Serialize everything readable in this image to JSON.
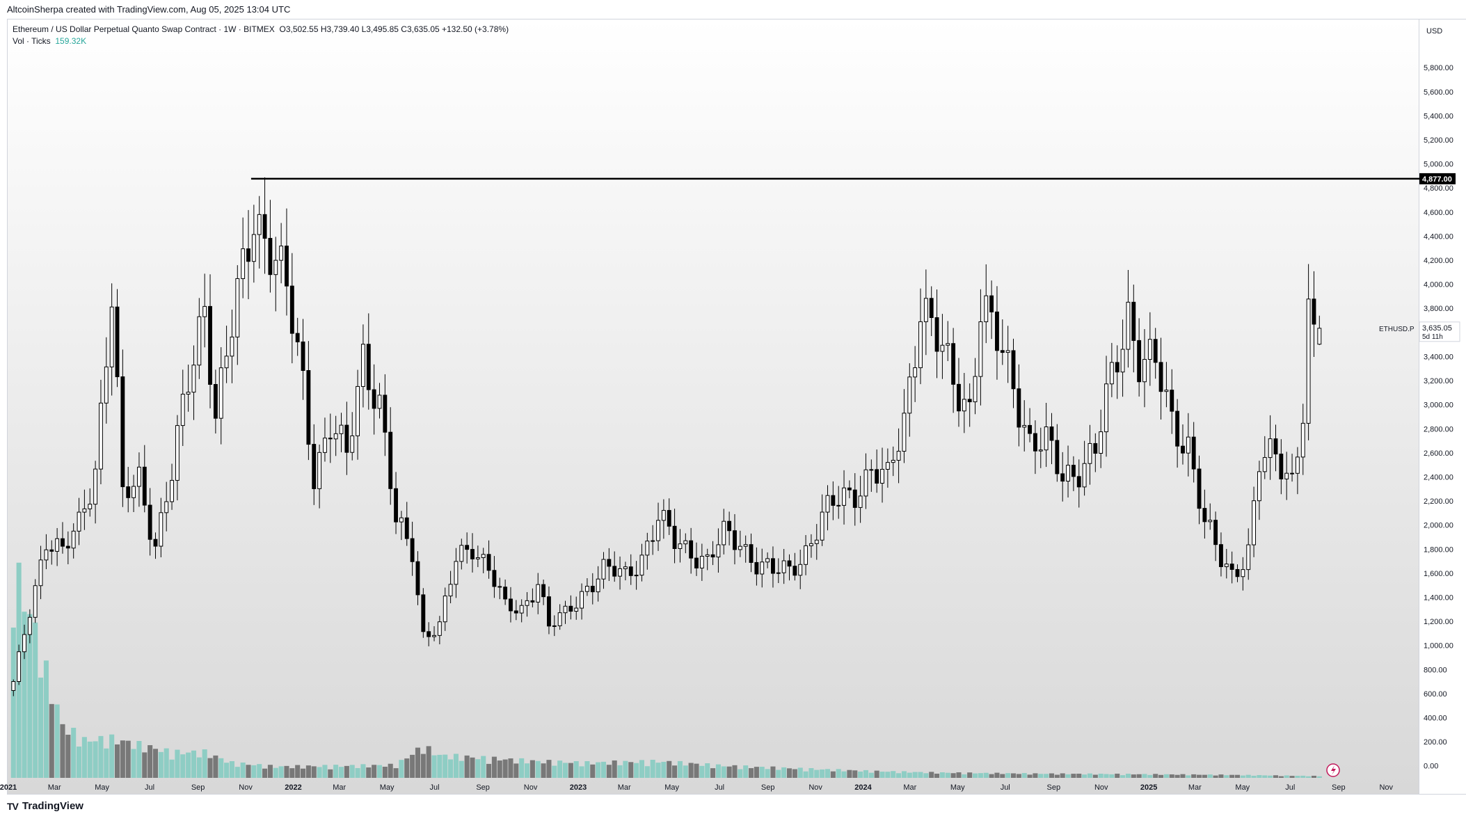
{
  "header": {
    "created_by": "AltcoinSherpa created with TradingView.com, Aug 05, 2025 13:04 UTC"
  },
  "legend": {
    "symbol_line": "Ethereum / US Dollar Perpetual Quanto Swap Contract · 1W · BITMEX",
    "ohlc": "O3,502.55  H3,739.40  L3,495.85  C3,635.05  +132.50 (+3.78%)",
    "volume_label": "Vol · Ticks",
    "volume_value": "159.32K"
  },
  "footer": {
    "brand": "TradingView",
    "brand_mark": "TV"
  },
  "colors": {
    "up_body": "#ffffff",
    "down_body": "#000000",
    "wick": "#000000",
    "vol_up": "#8ecdc4",
    "vol_down": "#787878",
    "hline": "#000000",
    "grid_bg_top": "#ffffff",
    "grid_bg_bottom": "#d8d8d8"
  },
  "chart_data": {
    "type": "candlestick",
    "title": "",
    "currency": "USD",
    "timeframe": "1W",
    "ylim": [
      -100,
      6200
    ],
    "yticks": [
      0,
      200,
      400,
      600,
      800,
      1000,
      1200,
      1400,
      1600,
      1800,
      2000,
      2200,
      2400,
      2600,
      2800,
      3000,
      3200,
      3400,
      3600,
      3800,
      4000,
      4200,
      4400,
      4600,
      4800,
      5000,
      5200,
      5400,
      5600,
      5800
    ],
    "ytick_labels": [
      "0.00",
      "200.00",
      "400.00",
      "600.00",
      "800.00",
      "1,000.00",
      "1,200.00",
      "1,400.00",
      "1,600.00",
      "1,800.00",
      "2,000.00",
      "2,200.00",
      "2,400.00",
      "2,600.00",
      "2,800.00",
      "3,000.00",
      "3,200.00",
      "3,400.00",
      "3,600.00",
      "3,800.00",
      "4,000.00",
      "4,200.00",
      "4,400.00",
      "4,600.00",
      "4,800.00",
      "5,000.00",
      "5,200.00",
      "5,400.00",
      "5,600.00",
      "5,800.00"
    ],
    "x_start": "2021-01-01",
    "x_end": "2025-12-10",
    "x_ticks": [
      {
        "date": "2021-01-01",
        "label": "2021",
        "bold": true
      },
      {
        "date": "2021-03-01",
        "label": "Mar"
      },
      {
        "date": "2021-05-01",
        "label": "May"
      },
      {
        "date": "2021-07-01",
        "label": "Jul"
      },
      {
        "date": "2021-09-01",
        "label": "Sep"
      },
      {
        "date": "2021-11-01",
        "label": "Nov"
      },
      {
        "date": "2022-01-01",
        "label": "2022",
        "bold": true
      },
      {
        "date": "2022-03-01",
        "label": "Mar"
      },
      {
        "date": "2022-05-01",
        "label": "May"
      },
      {
        "date": "2022-07-01",
        "label": "Jul"
      },
      {
        "date": "2022-09-01",
        "label": "Sep"
      },
      {
        "date": "2022-11-01",
        "label": "Nov"
      },
      {
        "date": "2023-01-01",
        "label": "2023",
        "bold": true
      },
      {
        "date": "2023-03-01",
        "label": "Mar"
      },
      {
        "date": "2023-05-01",
        "label": "May"
      },
      {
        "date": "2023-07-01",
        "label": "Jul"
      },
      {
        "date": "2023-09-01",
        "label": "Sep"
      },
      {
        "date": "2023-11-01",
        "label": "Nov"
      },
      {
        "date": "2024-01-01",
        "label": "2024",
        "bold": true
      },
      {
        "date": "2024-03-01",
        "label": "Mar"
      },
      {
        "date": "2024-05-01",
        "label": "May"
      },
      {
        "date": "2024-07-01",
        "label": "Jul"
      },
      {
        "date": "2024-09-01",
        "label": "Sep"
      },
      {
        "date": "2024-11-01",
        "label": "Nov"
      },
      {
        "date": "2025-01-01",
        "label": "2025",
        "bold": true
      },
      {
        "date": "2025-03-01",
        "label": "Mar"
      },
      {
        "date": "2025-05-01",
        "label": "May"
      },
      {
        "date": "2025-07-01",
        "label": "Jul"
      },
      {
        "date": "2025-09-01",
        "label": "Sep"
      },
      {
        "date": "2025-11-01",
        "label": "Nov"
      }
    ],
    "horizontal_line": {
      "price": 4877,
      "label": "4,877.00",
      "start": "2021-11-08"
    },
    "last_price": {
      "price": 3635.05,
      "label": "3,635.05",
      "symbol": "ETHUSD.P",
      "countdown": "5d 11h"
    },
    "price_anchors": [
      [
        "2021-01-04",
        680
      ],
      [
        "2021-01-25",
        1300
      ],
      [
        "2021-02-15",
        1900
      ],
      [
        "2021-03-08",
        1750
      ],
      [
        "2021-03-29",
        2000
      ],
      [
        "2021-04-19",
        2500
      ],
      [
        "2021-05-10",
        3900
      ],
      [
        "2021-05-24",
        2200
      ],
      [
        "2021-06-14",
        2400
      ],
      [
        "2021-07-05",
        1850
      ],
      [
        "2021-07-26",
        2400
      ],
      [
        "2021-08-16",
        3200
      ],
      [
        "2021-09-06",
        3900
      ],
      [
        "2021-09-20",
        2900
      ],
      [
        "2021-10-11",
        3600
      ],
      [
        "2021-11-08",
        4650
      ],
      [
        "2021-11-29",
        4300
      ],
      [
        "2021-12-20",
        3900
      ],
      [
        "2022-01-10",
        3200
      ],
      [
        "2022-01-24",
        2450
      ],
      [
        "2022-02-14",
        2800
      ],
      [
        "2022-03-07",
        2550
      ],
      [
        "2022-03-28",
        3450
      ],
      [
        "2022-04-18",
        3000
      ],
      [
        "2022-05-09",
        2000
      ],
      [
        "2022-05-30",
        1800
      ],
      [
        "2022-06-13",
        1100
      ],
      [
        "2022-07-04",
        1150
      ],
      [
        "2022-07-25",
        1700
      ],
      [
        "2022-08-15",
        1850
      ],
      [
        "2022-09-05",
        1650
      ],
      [
        "2022-09-26",
        1300
      ],
      [
        "2022-10-17",
        1300
      ],
      [
        "2022-11-07",
        1550
      ],
      [
        "2022-11-21",
        1150
      ],
      [
        "2022-12-12",
        1250
      ],
      [
        "2023-01-09",
        1500
      ],
      [
        "2023-01-30",
        1620
      ],
      [
        "2023-02-27",
        1580
      ],
      [
        "2023-03-20",
        1750
      ],
      [
        "2023-04-10",
        2050
      ],
      [
        "2023-05-01",
        1850
      ],
      [
        "2023-05-22",
        1800
      ],
      [
        "2023-06-12",
        1700
      ],
      [
        "2023-07-03",
        1900
      ],
      [
        "2023-07-24",
        1860
      ],
      [
        "2023-08-14",
        1700
      ],
      [
        "2023-09-04",
        1600
      ],
      [
        "2023-09-25",
        1620
      ],
      [
        "2023-10-16",
        1800
      ],
      [
        "2023-11-06",
        2050
      ],
      [
        "2023-11-27",
        2200
      ],
      [
        "2023-12-18",
        2300
      ],
      [
        "2024-01-08",
        2450
      ],
      [
        "2024-01-29",
        2350
      ],
      [
        "2024-02-19",
        2900
      ],
      [
        "2024-03-11",
        3850
      ],
      [
        "2024-04-01",
        3500
      ],
      [
        "2024-04-22",
        3200
      ],
      [
        "2024-05-13",
        3000
      ],
      [
        "2024-05-27",
        3800
      ],
      [
        "2024-06-17",
        3500
      ],
      [
        "2024-07-08",
        3200
      ],
      [
        "2024-07-29",
        2700
      ],
      [
        "2024-08-19",
        2650
      ],
      [
        "2024-09-09",
        2400
      ],
      [
        "2024-09-30",
        2500
      ],
      [
        "2024-10-21",
        2600
      ],
      [
        "2024-11-11",
        3200
      ],
      [
        "2024-12-02",
        3800
      ],
      [
        "2024-12-16",
        3400
      ],
      [
        "2025-01-06",
        3300
      ],
      [
        "2025-01-27",
        2850
      ],
      [
        "2025-02-17",
        2700
      ],
      [
        "2025-03-10",
        2000
      ],
      [
        "2025-03-31",
        1700
      ],
      [
        "2025-04-14",
        1600
      ],
      [
        "2025-05-05",
        1800
      ],
      [
        "2025-05-19",
        2500
      ],
      [
        "2025-06-09",
        2550
      ],
      [
        "2025-06-30",
        2400
      ],
      [
        "2025-07-14",
        3000
      ],
      [
        "2025-07-21",
        3750
      ],
      [
        "2025-07-28",
        3502.55
      ],
      [
        "2025-08-04",
        3635.05
      ]
    ],
    "volume_anchors": [
      [
        "2021-01-04",
        1400
      ],
      [
        "2021-01-25",
        1100
      ],
      [
        "2021-02-15",
        700
      ],
      [
        "2021-03-08",
        350
      ],
      [
        "2021-04-05",
        250
      ],
      [
        "2021-05-10",
        260
      ],
      [
        "2021-06-14",
        220
      ],
      [
        "2021-07-26",
        170
      ],
      [
        "2021-09-06",
        170
      ],
      [
        "2021-10-11",
        100
      ],
      [
        "2021-12-06",
        75
      ],
      [
        "2022-03-07",
        80
      ],
      [
        "2022-05-09",
        85
      ],
      [
        "2022-06-13",
        210
      ],
      [
        "2022-07-04",
        150
      ],
      [
        "2022-09-05",
        130
      ],
      [
        "2022-11-07",
        110
      ],
      [
        "2023-01-09",
        100
      ],
      [
        "2023-04-10",
        110
      ],
      [
        "2023-07-03",
        80
      ],
      [
        "2023-10-16",
        60
      ],
      [
        "2024-01-08",
        45
      ],
      [
        "2024-04-01",
        35
      ],
      [
        "2024-08-05",
        28
      ],
      [
        "2024-12-02",
        25
      ],
      [
        "2025-04-07",
        20
      ],
      [
        "2025-08-04",
        12
      ]
    ]
  }
}
